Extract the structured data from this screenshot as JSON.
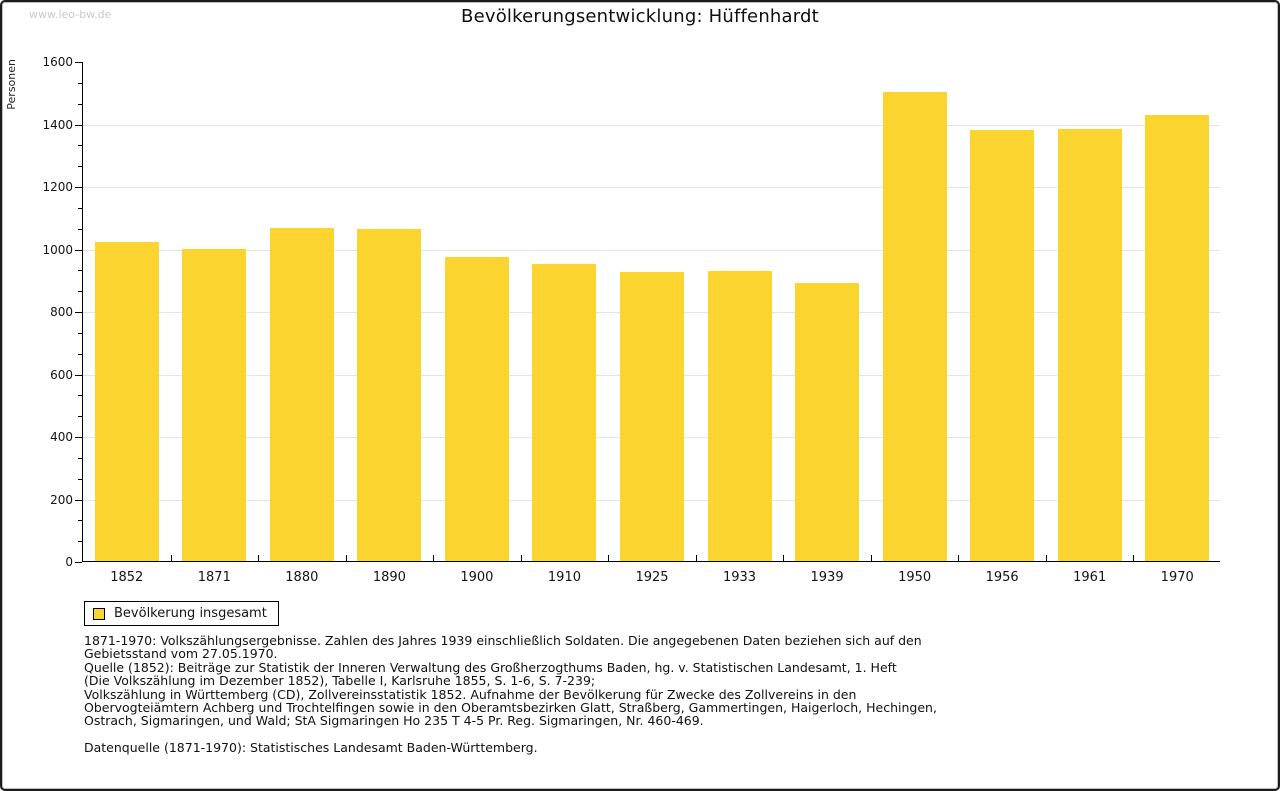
{
  "site": {
    "watermark": "www.leo-bw.de"
  },
  "chart_data": {
    "type": "bar",
    "title": "Bevölkerungsentwicklung: Hüffenhardt",
    "xlabel": "",
    "ylabel": "Personen",
    "categories": [
      "1852",
      "1871",
      "1880",
      "1890",
      "1900",
      "1910",
      "1925",
      "1933",
      "1939",
      "1950",
      "1956",
      "1961",
      "1970"
    ],
    "values": [
      1021,
      997,
      1066,
      1061,
      973,
      950,
      925,
      928,
      890,
      1500,
      1378,
      1383,
      1427
    ],
    "ylim": [
      0,
      1600
    ],
    "ytick_step": 200,
    "minor_ticks_per_interval": 2,
    "grid": "horizontal-major",
    "gridline_color": "#e4e4e4",
    "bar_color": "#FCD42F",
    "legend_position": "bottom-left",
    "series_name": "Bevölkerung insgesamt"
  },
  "legend": {
    "label": "Bevölkerung insgesamt",
    "swatch_color": "#FCD42F"
  },
  "footnotes": {
    "lines": [
      "1871-1970: Volkszählungsergebnisse. Zahlen des Jahres 1939 einschließlich Soldaten. Die angegebenen Daten beziehen sich auf den",
      "Gebietsstand vom 27.05.1970.",
      "Quelle (1852): Beiträge zur Statistik der Inneren Verwaltung des Großherzogthums Baden, hg. v. Statistischen Landesamt, 1. Heft",
      "(Die Volkszählung im Dezember 1852), Tabelle I, Karlsruhe 1855, S. 1-6, S. 7-239;",
      "Volkszählung in Württemberg (CD), Zollvereinsstatistik 1852. Aufnahme der Bevölkerung für Zwecke des Zollvereins in den",
      "Obervogteiämtern Achberg und Trochtelfingen sowie in den Oberamtsbezirken Glatt, Straßberg, Gammertingen, Haigerloch, Hechingen,",
      "Ostrach, Sigmaringen, und Wald; StA Sigmaringen Ho 235 T 4-5 Pr. Reg. Sigmaringen, Nr. 460-469."
    ],
    "datasource": "Datenquelle (1871-1970): Statistisches Landesamt Baden-Württemberg."
  }
}
